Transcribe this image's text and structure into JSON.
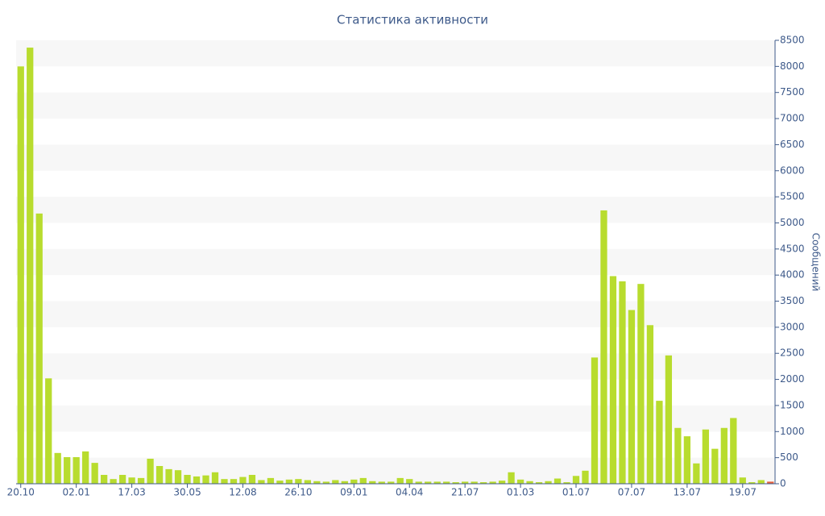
{
  "chart_data": {
    "type": "bar",
    "title": "Статистика активности",
    "y_axis_label": "Сообщений",
    "categories": [
      "20.10",
      null,
      null,
      null,
      null,
      null,
      "02.01",
      null,
      null,
      null,
      null,
      null,
      "17.03",
      null,
      null,
      null,
      null,
      null,
      "30.05",
      null,
      null,
      null,
      null,
      null,
      "12.08",
      null,
      null,
      null,
      null,
      null,
      "26.10",
      null,
      null,
      null,
      null,
      null,
      "09.01",
      null,
      null,
      null,
      null,
      null,
      "04.04",
      null,
      null,
      null,
      null,
      null,
      "21.07",
      null,
      null,
      null,
      null,
      null,
      "01.03",
      null,
      null,
      null,
      null,
      null,
      "01.07",
      null,
      null,
      null,
      null,
      null,
      "07.07",
      null,
      null,
      null,
      null,
      null,
      "13.07",
      null,
      null,
      null,
      null,
      null,
      "19.07",
      null,
      null,
      null
    ],
    "values": [
      8000,
      8360,
      5180,
      2020,
      590,
      510,
      510,
      620,
      400,
      170,
      90,
      170,
      120,
      110,
      480,
      340,
      280,
      260,
      170,
      140,
      160,
      220,
      90,
      90,
      130,
      170,
      70,
      110,
      60,
      80,
      90,
      70,
      50,
      40,
      70,
      50,
      80,
      110,
      50,
      40,
      40,
      110,
      90,
      40,
      40,
      40,
      40,
      30,
      40,
      40,
      30,
      40,
      60,
      220,
      80,
      50,
      30,
      50,
      100,
      30,
      150,
      250,
      2420,
      5240,
      3980,
      3880,
      3330,
      3830,
      3040,
      1590,
      2460,
      1070,
      910,
      390,
      1040,
      670,
      1070,
      1260,
      120,
      30,
      70,
      40
    ],
    "color": "#b8dc2e",
    "last_color": "#e8603c",
    "ylim": [
      0,
      8500
    ],
    "yticks": [
      0,
      500,
      1000,
      1500,
      2000,
      2500,
      3000,
      3500,
      4000,
      4500,
      5000,
      5500,
      6000,
      6500,
      7000,
      7500,
      8000,
      8500
    ],
    "grid": "bands"
  }
}
